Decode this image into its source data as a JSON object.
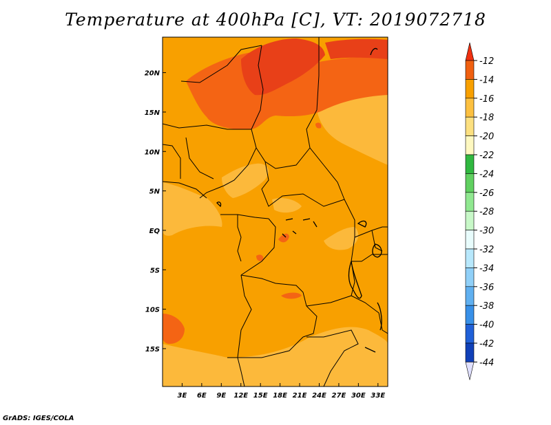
{
  "title": "Temperature at 400hPa [C], VT: 2019072718",
  "credit": "GrADS: IGES/COLA",
  "map": {
    "region": "Central Africa",
    "lon_range": [
      0,
      34.5
    ],
    "lat_range": [
      -19.8,
      24.5
    ],
    "lon_ticks": [
      {
        "v": 3,
        "label": "3E"
      },
      {
        "v": 6,
        "label": "6E"
      },
      {
        "v": 9,
        "label": "9E"
      },
      {
        "v": 12,
        "label": "12E"
      },
      {
        "v": 15,
        "label": "15E"
      },
      {
        "v": 18,
        "label": "18E"
      },
      {
        "v": 21,
        "label": "21E"
      },
      {
        "v": 24,
        "label": "24E"
      },
      {
        "v": 27,
        "label": "27E"
      },
      {
        "v": 30,
        "label": "30E"
      },
      {
        "v": 33,
        "label": "33E"
      }
    ],
    "lat_ticks": [
      {
        "v": 20,
        "label": "20N"
      },
      {
        "v": 15,
        "label": "15N"
      },
      {
        "v": 10,
        "label": "10N"
      },
      {
        "v": 5,
        "label": "5N"
      },
      {
        "v": 0,
        "label": "EQ"
      },
      {
        "v": -5,
        "label": "5S"
      },
      {
        "v": -10,
        "label": "10S"
      },
      {
        "v": -15,
        "label": "15S"
      }
    ],
    "fill_colors": {
      "band_16_14": "#f8a000",
      "band_18_16": "#fcb93b",
      "band_14_12": "#f46414",
      "band_12_up": "#e84018"
    }
  },
  "colorbar": {
    "labels": [
      "-12",
      "-14",
      "-16",
      "-18",
      "-20",
      "-22",
      "-24",
      "-26",
      "-28",
      "-30",
      "-32",
      "-34",
      "-36",
      "-38",
      "-40",
      "-42",
      "-44"
    ],
    "colors": [
      "#f03010",
      "#f06010",
      "#f8a000",
      "#fcc040",
      "#fce080",
      "#fef8c0",
      "#30b840",
      "#60d060",
      "#90e890",
      "#c8f8c8",
      "#e8fcfc",
      "#b8e8fc",
      "#90d0f8",
      "#60b0f0",
      "#3890e8",
      "#2060d8",
      "#1040b8",
      "#081070"
    ],
    "top_arrow_color": "#f03010",
    "bottom_arrow_color": "#e0e0ff"
  }
}
